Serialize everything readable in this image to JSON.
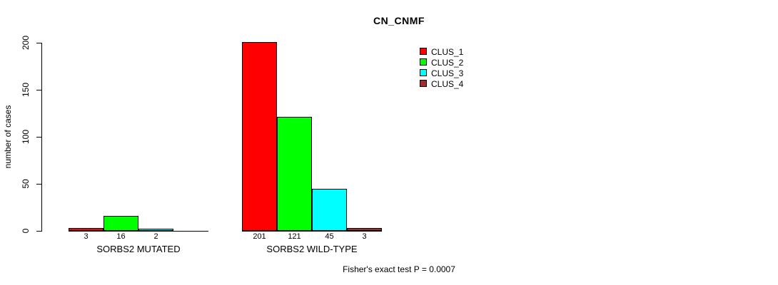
{
  "chart_data": {
    "type": "bar",
    "title": "CN_CNMF",
    "ylabel": "number of cases",
    "xlabel": "",
    "ylim": [
      0,
      200
    ],
    "yticks": [
      0,
      50,
      100,
      150,
      200
    ],
    "grid": false,
    "legend_position": "top-right",
    "series": [
      {
        "name": "CLUS_1",
        "color": "#FF0000"
      },
      {
        "name": "CLUS_2",
        "color": "#00FF00"
      },
      {
        "name": "CLUS_3",
        "color": "#00FFFF"
      },
      {
        "name": "CLUS_4",
        "color": "#A52A2A"
      }
    ],
    "groups": [
      {
        "label": "SORBS2 MUTATED",
        "values": [
          3,
          16,
          2,
          0
        ],
        "value_labels": [
          "3",
          "16",
          "2",
          ""
        ]
      },
      {
        "label": "SORBS2 WILD-TYPE",
        "values": [
          201,
          121,
          45,
          3
        ],
        "value_labels": [
          "201",
          "121",
          "45",
          "3"
        ]
      }
    ],
    "annotation": "Fisher's exact test P = 0.0007"
  }
}
